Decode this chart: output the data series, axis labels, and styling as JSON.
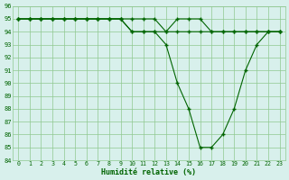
{
  "x": [
    0,
    1,
    2,
    3,
    4,
    5,
    6,
    7,
    8,
    9,
    10,
    11,
    12,
    13,
    14,
    15,
    16,
    17,
    18,
    19,
    20,
    21,
    22,
    23
  ],
  "line1": [
    95,
    95,
    95,
    95,
    95,
    95,
    95,
    95,
    95,
    95,
    95,
    95,
    95,
    94,
    95,
    95,
    95,
    94,
    94,
    94,
    94,
    94,
    94,
    94
  ],
  "line2": [
    95,
    95,
    95,
    95,
    95,
    95,
    95,
    95,
    95,
    95,
    94,
    94,
    94,
    94,
    94,
    94,
    94,
    94,
    94,
    94,
    94,
    94,
    94,
    94
  ],
  "line3": [
    95,
    95,
    95,
    95,
    95,
    95,
    95,
    95,
    95,
    95,
    94,
    94,
    94,
    93,
    90,
    88,
    85,
    85,
    86,
    88,
    91,
    93,
    94,
    94
  ],
  "line_color": "#006400",
  "bg_color": "#d8f0ec",
  "grid_color": "#90c890",
  "xlabel": "Humidité relative (%)",
  "ylim": [
    84,
    96
  ],
  "xlim": [
    -0.5,
    23.5
  ],
  "yticks": [
    84,
    85,
    86,
    87,
    88,
    89,
    90,
    91,
    92,
    93,
    94,
    95,
    96
  ],
  "xticks": [
    0,
    1,
    2,
    3,
    4,
    5,
    6,
    7,
    8,
    9,
    10,
    11,
    12,
    13,
    14,
    15,
    16,
    17,
    18,
    19,
    20,
    21,
    22,
    23
  ],
  "marker": "+",
  "markersize": 3.5,
  "linewidth": 0.8
}
